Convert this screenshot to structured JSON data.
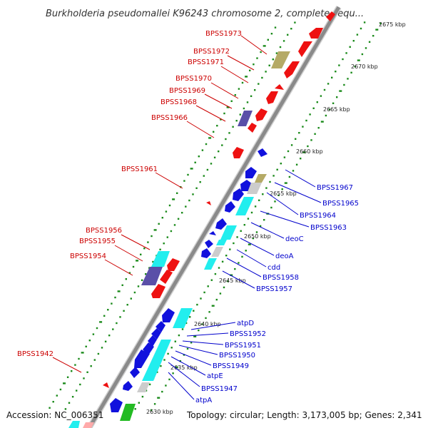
{
  "title": "Burkholderia pseudomallei K96243 chromosome 2, complete sequ...",
  "footer": {
    "accession": "Accession: NC_006351",
    "topology": "Topology: circular; Length: 3,173,005 bp; Genes: 2,341"
  },
  "colors": {
    "forward_label": "#cc0000",
    "reverse_label": "#0000cc",
    "backbone": "#888888",
    "tick_dots": "#1a8a1a",
    "gene_red": "#ee1111",
    "gene_blue": "#1111dd",
    "gene_cyan": "#22eeee",
    "gene_olive": "#b5aa66",
    "gene_purple": "#5a4fa8",
    "gene_grey": "#cccccc",
    "gene_green": "#22bb22"
  },
  "scale_ticks": [
    "2675 kbp",
    "2670 kbp",
    "2665 kbp",
    "2660 kbp",
    "2655 kbp",
    "2650 kbp",
    "2645 kbp",
    "2640 kbp",
    "2635 kbp",
    "2630 kbp"
  ],
  "forward_labels": [
    "BPSS1973",
    "BPSS1972",
    "BPSS1971",
    "BPSS1970",
    "BPSS1969",
    "BPSS1968",
    "BPSS1966",
    "BPSS1961",
    "BPSS1956",
    "BPSS1955",
    "BPSS1954",
    "BPSS1942"
  ],
  "reverse_labels": [
    "BPSS1967",
    "BPSS1965",
    "BPSS1964",
    "BPSS1963",
    "deoC",
    "deoA",
    "cdd",
    "BPSS1958",
    "BPSS1957",
    "atpD",
    "BPSS1952",
    "BPSS1951",
    "BPSS1950",
    "BPSS1949",
    "atpE",
    "BPSS1947",
    "atpA"
  ]
}
